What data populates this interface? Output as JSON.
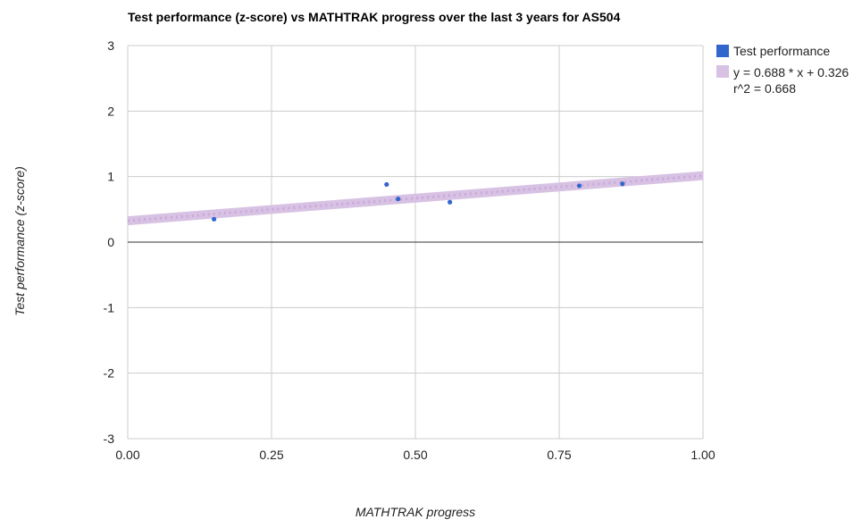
{
  "chart_data": {
    "type": "scatter",
    "title": "Test performance (z-score) vs MATHTRAK progress over the last 3 years for AS504",
    "xlabel": "MATHTRAK progress",
    "ylabel": "Test performance (z-score)",
    "xlim": [
      0,
      1
    ],
    "ylim": [
      -3,
      3
    ],
    "x_ticks": [
      "0.00",
      "0.25",
      "0.50",
      "0.75",
      "1.00"
    ],
    "y_ticks": [
      "3",
      "2",
      "1",
      "0",
      "-1",
      "-2",
      "-3"
    ],
    "grid": true,
    "legend_position": "right",
    "series": [
      {
        "name": "Test performance",
        "color": "#3366cc",
        "points": [
          {
            "x": 0.15,
            "y": 0.35
          },
          {
            "x": 0.45,
            "y": 0.88
          },
          {
            "x": 0.47,
            "y": 0.66
          },
          {
            "x": 0.56,
            "y": 0.61
          },
          {
            "x": 0.785,
            "y": 0.86
          },
          {
            "x": 0.86,
            "y": 0.89
          }
        ]
      }
    ],
    "trendline": {
      "label": "y = 0.688 * x + 0.326",
      "r2_label": "r^2 = 0.668",
      "slope": 0.688,
      "intercept": 0.326,
      "color": "#d8c2e4"
    }
  }
}
